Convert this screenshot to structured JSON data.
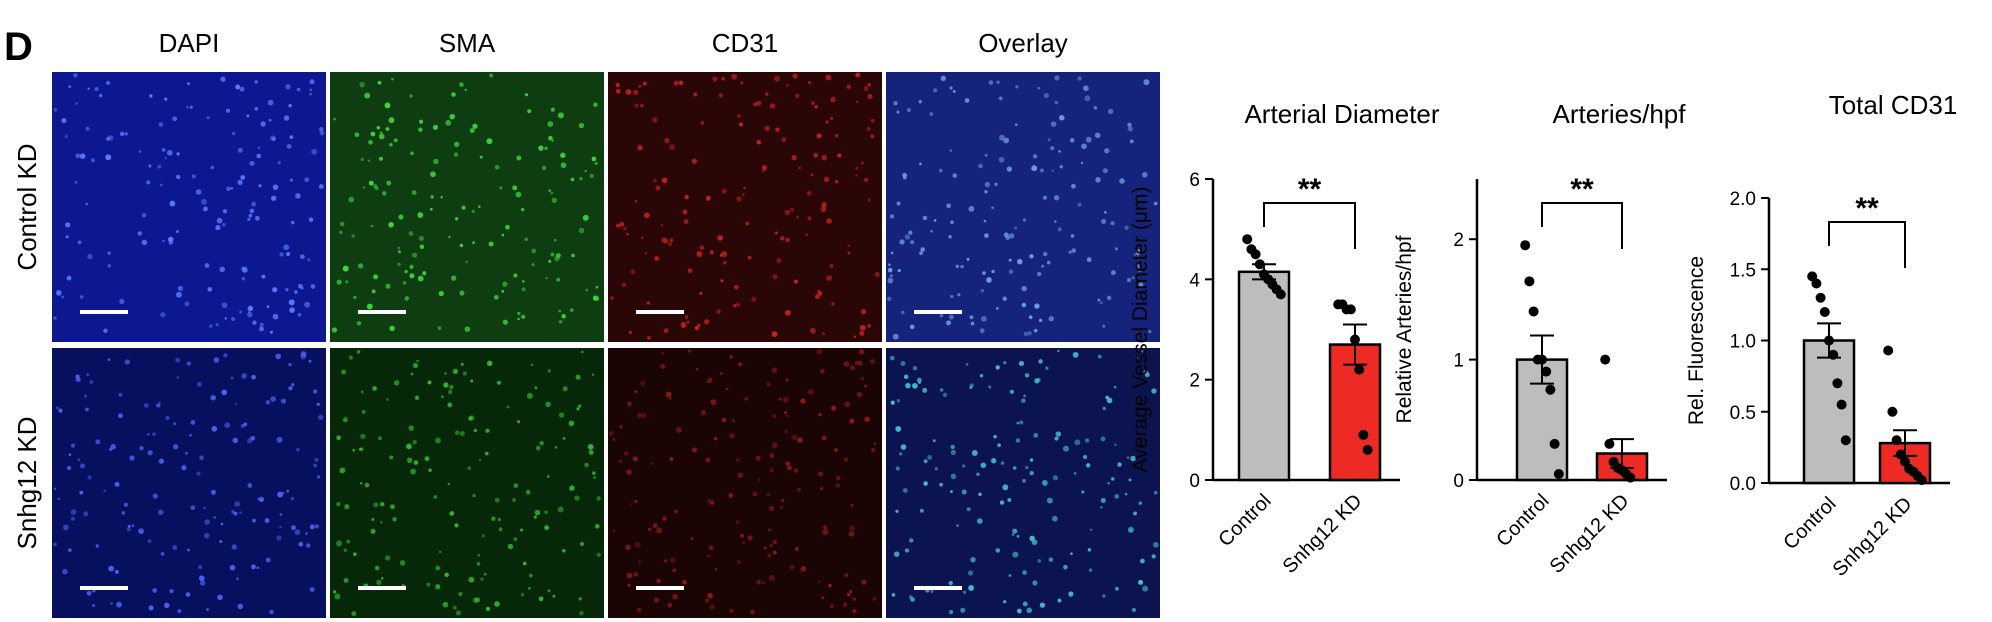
{
  "figure": {
    "panel_label": "D",
    "columns": [
      "DAPI",
      "SMA",
      "CD31",
      "Overlay"
    ],
    "rows": [
      "Control KD",
      "Snhg12 KD"
    ]
  },
  "chart_data": [
    {
      "type": "bar",
      "title": "Arterial Diameter",
      "ylabel": "Average Vessel Diameter (μm)",
      "categories": [
        "Control",
        "Snhg12 KD"
      ],
      "values": [
        4.15,
        2.7
      ],
      "errors": [
        0.15,
        0.4
      ],
      "colors": [
        "#bdbdbd",
        "#ee2a24"
      ],
      "points": [
        [
          4.8,
          4.6,
          4.5,
          4.3,
          4.1,
          4.0,
          3.9,
          3.8,
          3.7
        ],
        [
          3.5,
          3.5,
          3.4,
          3.4,
          2.8,
          2.2,
          0.9,
          0.6
        ]
      ],
      "significance": "**",
      "ylim": [
        0,
        6
      ],
      "yticks": [
        0,
        2,
        4,
        6
      ]
    },
    {
      "type": "bar",
      "title": "Arteries/hpf",
      "ylabel": "Relative Arteries/hpf",
      "categories": [
        "Control",
        "Snhg12 KD"
      ],
      "values": [
        1.0,
        0.22
      ],
      "errors": [
        0.2,
        0.12
      ],
      "colors": [
        "#bdbdbd",
        "#ee2a24"
      ],
      "points": [
        [
          1.95,
          1.65,
          1.4,
          1.0,
          1.0,
          0.9,
          0.75,
          0.3,
          0.05
        ],
        [
          1.0,
          0.3,
          0.15,
          0.1,
          0.08,
          0.05,
          0.02
        ]
      ],
      "significance": "**",
      "ylim": [
        0,
        2.5
      ],
      "yticks": [
        0,
        1,
        2
      ]
    },
    {
      "type": "bar",
      "title": "Total CD31",
      "ylabel": "Rel. Fluorescence",
      "categories": [
        "Control",
        "Snhg12 KD"
      ],
      "values": [
        1.0,
        0.28
      ],
      "errors": [
        0.12,
        0.09
      ],
      "colors": [
        "#bdbdbd",
        "#ee2a24"
      ],
      "points": [
        [
          1.45,
          1.4,
          1.3,
          1.2,
          1.0,
          0.9,
          0.7,
          0.55,
          0.3
        ],
        [
          0.93,
          0.5,
          0.3,
          0.2,
          0.15,
          0.1,
          0.08,
          0.05,
          0.02
        ]
      ],
      "significance": "**",
      "ylim": [
        0,
        2.0
      ],
      "yticks": [
        {
          "value": 0,
          "label": "0.0"
        },
        0.5,
        {
          "value": 1,
          "label": "1.0"
        },
        1.5,
        {
          "value": 2,
          "label": "2.0"
        }
      ]
    }
  ]
}
